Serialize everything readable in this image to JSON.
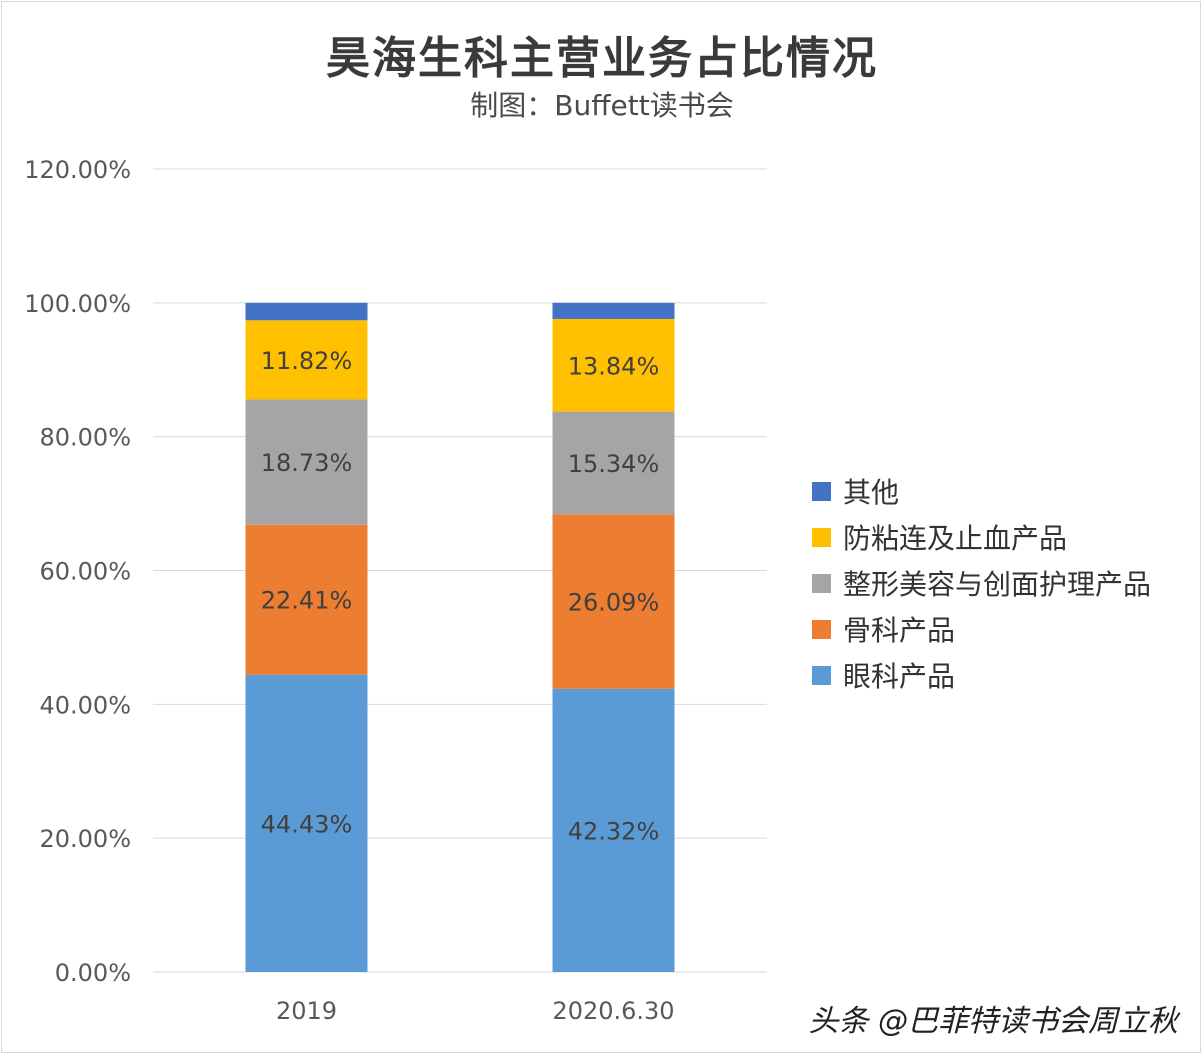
{
  "chart_data": {
    "type": "bar",
    "stacked": true,
    "title": "昊海生科主营业务占比情况",
    "subtitle": "制图：Buffett读书会",
    "categories": [
      "2019",
      "2020.6.30"
    ],
    "ylim": [
      0,
      1.2
    ],
    "yticks": [
      "0.00%",
      "20.00%",
      "40.00%",
      "60.00%",
      "80.00%",
      "100.00%",
      "120.00%"
    ],
    "grid": true,
    "legend_position": "right",
    "series": [
      {
        "name": "眼科产品",
        "color": "#5b9bd5",
        "values": [
          0.4443,
          0.4232
        ],
        "labels": [
          "44.43%",
          "42.32%"
        ]
      },
      {
        "name": "骨科产品",
        "color": "#ed7d31",
        "values": [
          0.2241,
          0.2609
        ],
        "labels": [
          "22.41%",
          "26.09%"
        ]
      },
      {
        "name": "整形美容与创面护理产品",
        "color": "#a5a5a5",
        "values": [
          0.1873,
          0.1534
        ],
        "labels": [
          "18.73%",
          "15.34%"
        ]
      },
      {
        "name": "防粘连及止血产品",
        "color": "#ffc000",
        "values": [
          0.1182,
          0.1384
        ],
        "labels": [
          "11.82%",
          "13.84%"
        ]
      },
      {
        "name": "其他",
        "color": "#4472c4",
        "values": [
          0.0261,
          0.0241
        ],
        "labels": [
          "",
          ""
        ]
      }
    ],
    "legend_order": [
      "其他",
      "防粘连及止血产品",
      "整形美容与创面护理产品",
      "骨科产品",
      "眼科产品"
    ]
  },
  "watermark": "头条 @巴菲特读书会周立秋"
}
